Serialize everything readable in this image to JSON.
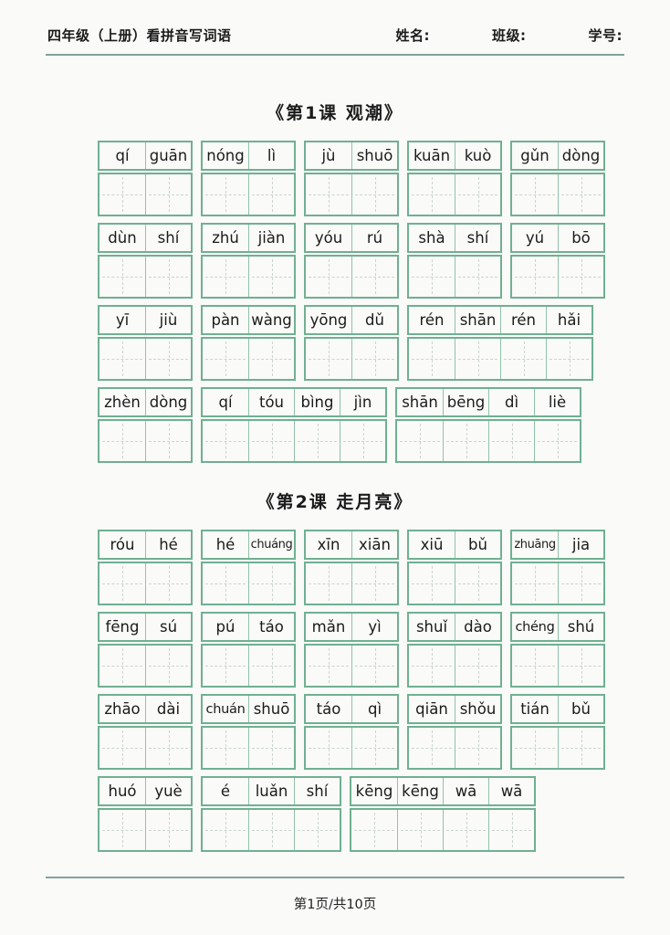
{
  "header": {
    "title": "四年级（上册）看拼音写词语",
    "name_label": "姓名:",
    "class_label": "班级:",
    "student_id_label": "学号:"
  },
  "lessons": [
    {
      "title": "《第1课 观潮》",
      "rows": [
        [
          [
            "qí",
            "guān"
          ],
          [
            "nóng",
            "lì"
          ],
          [
            "jù",
            "shuō"
          ],
          [
            "kuān",
            "kuò"
          ],
          [
            "gǔn",
            "dòng"
          ]
        ],
        [
          [
            "dùn",
            "shí"
          ],
          [
            "zhú",
            "jiàn"
          ],
          [
            "yóu",
            "rú"
          ],
          [
            "shà",
            "shí"
          ],
          [
            "yú",
            "bō"
          ]
        ],
        [
          [
            "yī",
            "jiù"
          ],
          [
            "pàn",
            "wàng"
          ],
          [
            "yōng",
            "dǔ"
          ],
          [
            "rén",
            "shān",
            "rén",
            "hǎi"
          ]
        ],
        [
          [
            "zhèn",
            "dòng"
          ],
          [
            "qí",
            "tóu",
            "bìng",
            "jìn"
          ],
          [
            "shān",
            "bēng",
            "dì",
            "liè"
          ]
        ]
      ]
    },
    {
      "title": "《第2课 走月亮》",
      "rows": [
        [
          [
            "róu",
            "hé"
          ],
          [
            "hé",
            "chuáng"
          ],
          [
            "xīn",
            "xiān"
          ],
          [
            "xiū",
            "bǔ"
          ],
          [
            "zhuāng",
            "jia"
          ]
        ],
        [
          [
            "fēng",
            "sú"
          ],
          [
            "pú",
            "táo"
          ],
          [
            "mǎn",
            "yì"
          ],
          [
            "shuǐ",
            "dào"
          ],
          [
            "chéng",
            "shú"
          ]
        ],
        [
          [
            "zhāo",
            "dài"
          ],
          [
            "chuán",
            "shuō"
          ],
          [
            "táo",
            "qì"
          ],
          [
            "qiān",
            "shǒu"
          ],
          [
            "tián",
            "bǔ"
          ]
        ],
        [
          [
            "huó",
            "yuè"
          ],
          [
            "é",
            "luǎn",
            "shí"
          ],
          [
            "kēng",
            "kēng",
            "wā",
            "wā"
          ]
        ]
      ]
    }
  ],
  "footer": {
    "page_info": "第1页/共10页"
  },
  "colors": {
    "grid_green": "#6fb091",
    "grid_green_light": "#8fc3a9",
    "rule_teal": "#7fa29a",
    "dash_gray": "#ccd6cd",
    "paper": "#fafaf8"
  }
}
